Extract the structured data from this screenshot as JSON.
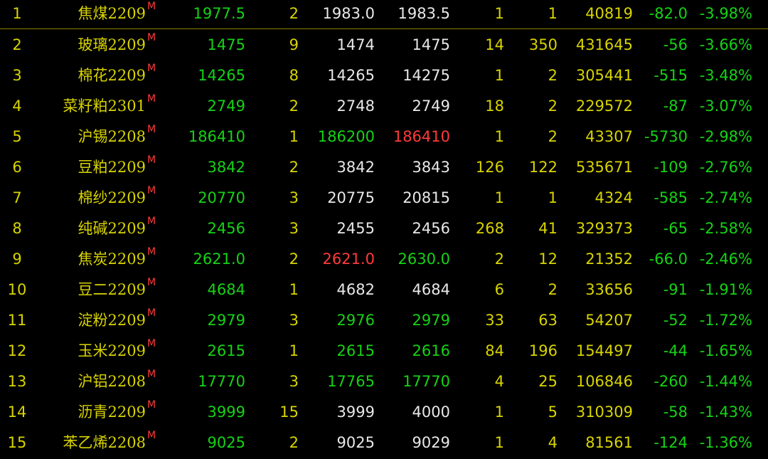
{
  "colors": {
    "yellow": "#d8d400",
    "green": "#16d216",
    "white": "#e8e8e8",
    "red": "#ff3a3a"
  },
  "marker": "M",
  "rows": [
    {
      "idx": "1",
      "name": "焦煤2209",
      "last": "1977.5",
      "vol": "2",
      "bid": "1983.0",
      "bid_color": "w",
      "ask": "1983.5",
      "ask_color": "w",
      "bid_vol": "1",
      "ask_vol": "1",
      "oi": "40819",
      "chg": "-82.0",
      "pct": "-3.98%"
    },
    {
      "idx": "2",
      "name": "玻璃2209",
      "last": "1475",
      "vol": "9",
      "bid": "1474",
      "bid_color": "w",
      "ask": "1475",
      "ask_color": "w",
      "bid_vol": "14",
      "ask_vol": "350",
      "oi": "431645",
      "chg": "-56",
      "pct": "-3.66%"
    },
    {
      "idx": "3",
      "name": "棉花2209",
      "last": "14265",
      "vol": "8",
      "bid": "14265",
      "bid_color": "w",
      "ask": "14275",
      "ask_color": "w",
      "bid_vol": "1",
      "ask_vol": "2",
      "oi": "305441",
      "chg": "-515",
      "pct": "-3.48%"
    },
    {
      "idx": "4",
      "name": "菜籽粕2301",
      "last": "2749",
      "vol": "2",
      "bid": "2748",
      "bid_color": "w",
      "ask": "2749",
      "ask_color": "w",
      "bid_vol": "18",
      "ask_vol": "2",
      "oi": "229572",
      "chg": "-87",
      "pct": "-3.07%"
    },
    {
      "idx": "5",
      "name": "沪锡2208",
      "last": "186410",
      "vol": "1",
      "bid": "186200",
      "bid_color": "g",
      "ask": "186410",
      "ask_color": "r",
      "bid_vol": "1",
      "ask_vol": "2",
      "oi": "43307",
      "chg": "-5730",
      "pct": "-2.98%"
    },
    {
      "idx": "6",
      "name": "豆粕2209",
      "last": "3842",
      "vol": "2",
      "bid": "3842",
      "bid_color": "w",
      "ask": "3843",
      "ask_color": "w",
      "bid_vol": "126",
      "ask_vol": "122",
      "oi": "535671",
      "chg": "-109",
      "pct": "-2.76%"
    },
    {
      "idx": "7",
      "name": "棉纱2209",
      "last": "20770",
      "vol": "3",
      "bid": "20775",
      "bid_color": "w",
      "ask": "20815",
      "ask_color": "w",
      "bid_vol": "1",
      "ask_vol": "1",
      "oi": "4324",
      "chg": "-585",
      "pct": "-2.74%"
    },
    {
      "idx": "8",
      "name": "纯碱2209",
      "last": "2456",
      "vol": "3",
      "bid": "2455",
      "bid_color": "w",
      "ask": "2456",
      "ask_color": "w",
      "bid_vol": "268",
      "ask_vol": "41",
      "oi": "329373",
      "chg": "-65",
      "pct": "-2.58%"
    },
    {
      "idx": "9",
      "name": "焦炭2209",
      "last": "2621.0",
      "vol": "2",
      "bid": "2621.0",
      "bid_color": "r",
      "ask": "2630.0",
      "ask_color": "g",
      "bid_vol": "2",
      "ask_vol": "12",
      "oi": "21352",
      "chg": "-66.0",
      "pct": "-2.46%"
    },
    {
      "idx": "10",
      "name": "豆二2209",
      "last": "4684",
      "vol": "1",
      "bid": "4682",
      "bid_color": "w",
      "ask": "4684",
      "ask_color": "w",
      "bid_vol": "6",
      "ask_vol": "2",
      "oi": "33656",
      "chg": "-91",
      "pct": "-1.91%"
    },
    {
      "idx": "11",
      "name": "淀粉2209",
      "last": "2979",
      "vol": "3",
      "bid": "2976",
      "bid_color": "g",
      "ask": "2979",
      "ask_color": "g",
      "bid_vol": "33",
      "ask_vol": "63",
      "oi": "54207",
      "chg": "-52",
      "pct": "-1.72%"
    },
    {
      "idx": "12",
      "name": "玉米2209",
      "last": "2615",
      "vol": "1",
      "bid": "2615",
      "bid_color": "g",
      "ask": "2616",
      "ask_color": "g",
      "bid_vol": "84",
      "ask_vol": "196",
      "oi": "154497",
      "chg": "-44",
      "pct": "-1.65%"
    },
    {
      "idx": "13",
      "name": "沪铝2208",
      "last": "17770",
      "vol": "3",
      "bid": "17765",
      "bid_color": "g",
      "ask": "17770",
      "ask_color": "g",
      "bid_vol": "4",
      "ask_vol": "25",
      "oi": "106846",
      "chg": "-260",
      "pct": "-1.44%"
    },
    {
      "idx": "14",
      "name": "沥青2209",
      "last": "3999",
      "vol": "15",
      "bid": "3999",
      "bid_color": "w",
      "ask": "4000",
      "ask_color": "w",
      "bid_vol": "1",
      "ask_vol": "5",
      "oi": "310309",
      "chg": "-58",
      "pct": "-1.43%"
    },
    {
      "idx": "15",
      "name": "苯乙烯2208",
      "last": "9025",
      "vol": "2",
      "bid": "9025",
      "bid_color": "w",
      "ask": "9029",
      "ask_color": "w",
      "bid_vol": "1",
      "ask_vol": "4",
      "oi": "81561",
      "chg": "-124",
      "pct": "-1.36%"
    }
  ]
}
